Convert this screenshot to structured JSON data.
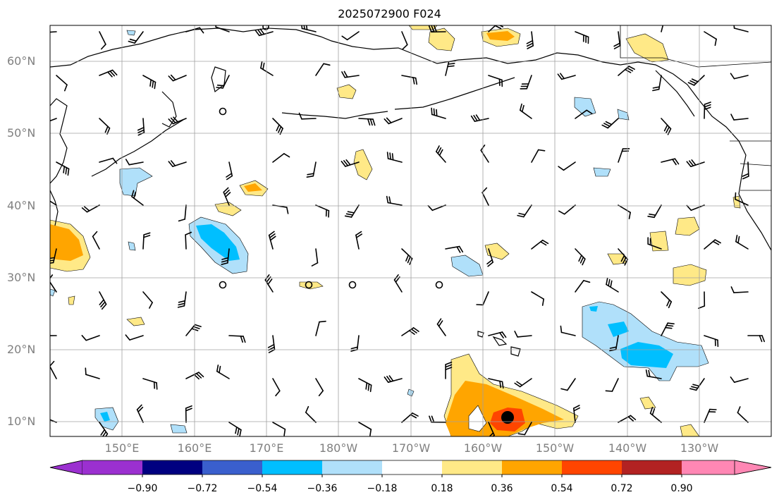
{
  "map": {
    "title": "2025072900 F024",
    "lat_labels": [
      "60°N",
      "50°N",
      "40°N",
      "30°N",
      "20°N",
      "10°N"
    ],
    "lon_labels": [
      "150°E",
      "160°E",
      "170°E",
      "180°W",
      "170°W",
      "160°W",
      "150°W",
      "140°W",
      "130°W"
    ]
  },
  "colorbar": {
    "tick_labels": [
      "−0.90",
      "−0.72",
      "−0.54",
      "−0.36",
      "−0.18",
      "0.18",
      "0.36",
      "0.54",
      "0.72",
      "0.90"
    ],
    "colors": [
      "#9b30d0",
      "#000080",
      "#3a5fcd",
      "#00bfff",
      "#b0e0fa",
      "#ffffff",
      "#ffe987",
      "#ffa500",
      "#ff4500",
      "#b22222",
      "#ff87b4"
    ]
  }
}
